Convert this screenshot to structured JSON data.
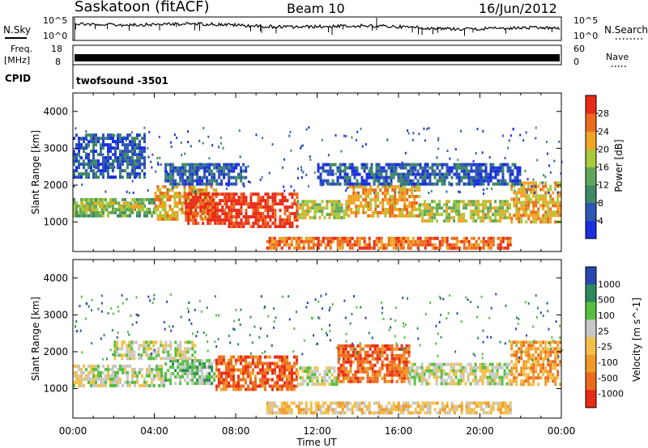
{
  "header": {
    "station": "Saskatoon (fitACF)",
    "beam": "Beam 10",
    "date": "16/Jun/2012"
  },
  "top_panels": {
    "nsky_label": "N.Sky",
    "nsky_ticks": [
      "10^5",
      "10^0"
    ],
    "nsearch_label": "N.Search",
    "nsearch_ticks": [
      "10^5",
      "10^0"
    ],
    "freq_label_1": "Freq.",
    "freq_label_2": "[MHz]",
    "freq_ticks": [
      "18",
      "8"
    ],
    "nave_label": "Nave",
    "nave_ticks": [
      "60",
      "0"
    ],
    "cpid_label": "CPID",
    "cpid_value": "twofsound -3501"
  },
  "chart_data": [
    {
      "type": "heatmap",
      "name": "power",
      "ylabel": "Slant Range [km]",
      "yticks": [
        "1000",
        "2000",
        "3000",
        "4000"
      ],
      "ylim": [
        200,
        4500
      ],
      "colorbar_label": "Power [dB]",
      "colorbar_ticks": [
        "4",
        "8",
        "12",
        "16",
        "20",
        "24",
        "28"
      ],
      "colorbar_range": [
        0,
        32
      ],
      "colors": [
        "#1a2fe0",
        "#2f55b5",
        "#3f8a66",
        "#5fa85a",
        "#a9c83c",
        "#f0a422",
        "#ec6a1c",
        "#e82a18"
      ],
      "bands": [
        {
          "t0": 0.0,
          "t1": 4.0,
          "r0": 1150,
          "r1": 1650,
          "level": 3
        },
        {
          "t0": 0.3,
          "t1": 3.5,
          "r0": 1300,
          "r1": 1550,
          "level": 4
        },
        {
          "t0": 4.0,
          "t1": 7.0,
          "r0": 1100,
          "r1": 2000,
          "level": 5
        },
        {
          "t0": 5.5,
          "t1": 7.5,
          "r0": 1000,
          "r1": 1800,
          "level": 7
        },
        {
          "t0": 7.5,
          "t1": 11.0,
          "r0": 900,
          "r1": 1800,
          "level": 7
        },
        {
          "t0": 11.0,
          "t1": 13.5,
          "r0": 1100,
          "r1": 1600,
          "level": 4
        },
        {
          "t0": 13.5,
          "t1": 17.0,
          "r0": 1200,
          "r1": 2000,
          "level": 5
        },
        {
          "t0": 17.0,
          "t1": 21.5,
          "r0": 1050,
          "r1": 1600,
          "level": 4
        },
        {
          "t0": 21.5,
          "t1": 24.0,
          "r0": 1000,
          "r1": 2100,
          "level": 5
        },
        {
          "t0": 4.5,
          "t1": 8.5,
          "r0": 2000,
          "r1": 2600,
          "level": 1
        },
        {
          "t0": 12.0,
          "t1": 22.0,
          "r0": 2000,
          "r1": 2600,
          "level": 1
        },
        {
          "t0": 9.5,
          "t1": 21.5,
          "r0": 300,
          "r1": 600,
          "level": 6
        },
        {
          "t0": 0.0,
          "t1": 3.5,
          "r0": 2200,
          "r1": 3400,
          "level": 1
        }
      ],
      "xticks": [
        "00:00",
        "04:00",
        "08:00",
        "12:00",
        "16:00",
        "20:00",
        "00:00"
      ],
      "xlim": [
        0,
        24
      ]
    },
    {
      "type": "heatmap",
      "name": "velocity",
      "ylabel": "Slant Range [km]",
      "yticks": [
        "1000",
        "2000",
        "3000",
        "4000"
      ],
      "ylim": [
        200,
        4500
      ],
      "colorbar_label": "Velocity [m s^-1]",
      "colorbar_ticks": [
        "1000",
        "500",
        "100",
        "25",
        "-25",
        "-100",
        "-500",
        "-1000"
      ],
      "colors": [
        "#2a46b0",
        "#2d8a5a",
        "#55c040",
        "#c8c8c8",
        "#f2c04a",
        "#f09a28",
        "#ec6a1c",
        "#e82a18"
      ],
      "bands": [
        {
          "t0": 0.0,
          "t1": 4.5,
          "r0": 1100,
          "r1": 1650,
          "level": 3
        },
        {
          "t0": 4.5,
          "t1": 7.0,
          "r0": 1100,
          "r1": 1800,
          "level": 2
        },
        {
          "t0": 7.0,
          "t1": 11.0,
          "r0": 1000,
          "r1": 1900,
          "level": 6
        },
        {
          "t0": 11.0,
          "t1": 13.0,
          "r0": 1100,
          "r1": 1600,
          "level": 3
        },
        {
          "t0": 13.0,
          "t1": 16.5,
          "r0": 1200,
          "r1": 2200,
          "level": 6
        },
        {
          "t0": 16.5,
          "t1": 21.5,
          "r0": 1100,
          "r1": 1700,
          "level": 3
        },
        {
          "t0": 21.5,
          "t1": 24.0,
          "r0": 1100,
          "r1": 2300,
          "level": 5
        },
        {
          "t0": 9.5,
          "t1": 21.5,
          "r0": 300,
          "r1": 650,
          "level": 4
        },
        {
          "t0": 2.0,
          "t1": 6.0,
          "r0": 1800,
          "r1": 2300,
          "level": 3
        }
      ],
      "xticks": [
        "00:00",
        "04:00",
        "08:00",
        "12:00",
        "16:00",
        "20:00",
        "00:00"
      ],
      "xlim": [
        0,
        24
      ],
      "xlabel": "Time UT"
    }
  ]
}
